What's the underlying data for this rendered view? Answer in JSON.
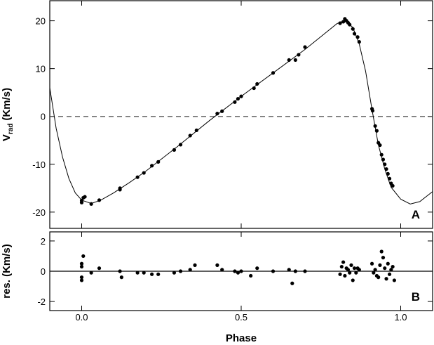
{
  "chart_data": [
    {
      "type": "scatter",
      "ylabel": {
        "main": "V",
        "sub": "rad",
        "unit": "(Km/s)"
      },
      "annotation": "A",
      "xlim": [
        -0.1,
        1.1
      ],
      "xticks": [
        0,
        0.5,
        1
      ],
      "ylim": [
        -23.4,
        24.2
      ],
      "yticks": [
        -20,
        -10,
        0,
        10,
        20
      ],
      "zero_line": "dashed",
      "color": "#000000",
      "curve": {
        "x": [
          -0.1,
          -0.08,
          -0.06,
          -0.04,
          -0.02,
          0,
          0.03,
          0.06,
          0.1,
          0.15,
          0.2,
          0.3,
          0.4,
          0.5,
          0.6,
          0.7,
          0.75,
          0.8,
          0.825,
          0.85,
          0.87,
          0.89,
          0.91,
          0.93,
          0.95,
          0.97,
          1.0,
          1.03,
          1.06,
          1.1
        ],
        "y": [
          6,
          -2.5,
          -8.5,
          -13,
          -16,
          -17.5,
          -18.2,
          -17.5,
          -16,
          -13.8,
          -11.5,
          -6.3,
          -0.9,
          4.2,
          9.1,
          14,
          16.7,
          19.4,
          20.1,
          18.6,
          15.2,
          9.5,
          1.5,
          -5.9,
          -11,
          -14.8,
          -17.3,
          -18.3,
          -17.8,
          -15.7
        ]
      },
      "points": {
        "x": [
          0,
          0,
          0.005,
          0.01,
          0.03,
          0.055,
          0.12,
          0.12,
          0.175,
          0.195,
          0.22,
          0.24,
          0.29,
          0.31,
          0.34,
          0.36,
          0.425,
          0.44,
          0.48,
          0.49,
          0.5,
          0.54,
          0.55,
          0.6,
          0.65,
          0.67,
          0.68,
          0.7,
          0.81,
          0.82,
          0.825,
          0.83,
          0.835,
          0.84,
          0.85,
          0.855,
          0.865,
          0.87,
          0.91,
          0.912,
          0.92,
          0.925,
          0.93,
          0.935,
          0.94,
          0.945,
          0.95,
          0.955,
          0.96,
          0.965,
          0.97,
          0.975
        ],
        "y": [
          -17.6,
          -18,
          -17,
          -16.8,
          -18.3,
          -17.5,
          -15,
          -15.3,
          -12.7,
          -11.8,
          -10.3,
          -9.5,
          -7,
          -5.9,
          -4,
          -2.9,
          0.6,
          1.1,
          3,
          3.7,
          4.2,
          5.9,
          6.8,
          9.1,
          11.8,
          11.8,
          12.9,
          14.5,
          19.5,
          19.8,
          20.4,
          20,
          19.6,
          19.2,
          18.3,
          17.3,
          16.6,
          15.6,
          1.6,
          1.2,
          -2,
          -3,
          -5.5,
          -6,
          -8,
          -9,
          -10,
          -11,
          -12,
          -13,
          -14,
          -14.5
        ]
      }
    },
    {
      "type": "scatter",
      "ylabel": "res. (Km/s)",
      "xlabel": "Phase",
      "annotation": "B",
      "xlim": [
        -0.1,
        1.1
      ],
      "xticks": [
        {
          "value": 0,
          "label": "0.0"
        },
        0.5,
        {
          "value": 1,
          "label": "1.0"
        }
      ],
      "ylim": [
        -2.6,
        2.6
      ],
      "yticks": [
        -2,
        0,
        2
      ],
      "zero_line": "solid",
      "color": "#000000",
      "points": {
        "x": [
          0,
          0,
          0,
          0,
          0.005,
          0.03,
          0.055,
          0.12,
          0.125,
          0.175,
          0.195,
          0.22,
          0.24,
          0.29,
          0.31,
          0.34,
          0.355,
          0.425,
          0.44,
          0.48,
          0.49,
          0.5,
          0.53,
          0.55,
          0.6,
          0.65,
          0.66,
          0.67,
          0.7,
          0.81,
          0.815,
          0.82,
          0.825,
          0.83,
          0.835,
          0.84,
          0.845,
          0.85,
          0.855,
          0.86,
          0.865,
          0.87,
          0.91,
          0.915,
          0.92,
          0.925,
          0.93,
          0.935,
          0.94,
          0.945,
          0.95,
          0.955,
          0.96,
          0.965,
          0.97,
          0.975,
          0.98
        ],
        "y": [
          0.5,
          0.3,
          -0.4,
          -0.6,
          1.0,
          -0.1,
          0.2,
          0,
          -0.4,
          -0.1,
          -0.1,
          -0.2,
          -0.2,
          -0.1,
          0,
          0.1,
          0.4,
          0.4,
          0.1,
          0,
          -0.1,
          0,
          -0.3,
          0.2,
          0,
          0.1,
          -0.8,
          0,
          0,
          -0.2,
          0.3,
          0.6,
          -0.3,
          0.2,
          0.1,
          -0.1,
          0.4,
          -0.6,
          0.2,
          -0.1,
          0.2,
          0.1,
          0.5,
          -0.1,
          0.1,
          -0.3,
          -0.4,
          0.4,
          1.3,
          0.9,
          0.2,
          -0.5,
          0.5,
          -0.2,
          0.1,
          0.3,
          -0.6
        ]
      }
    }
  ]
}
